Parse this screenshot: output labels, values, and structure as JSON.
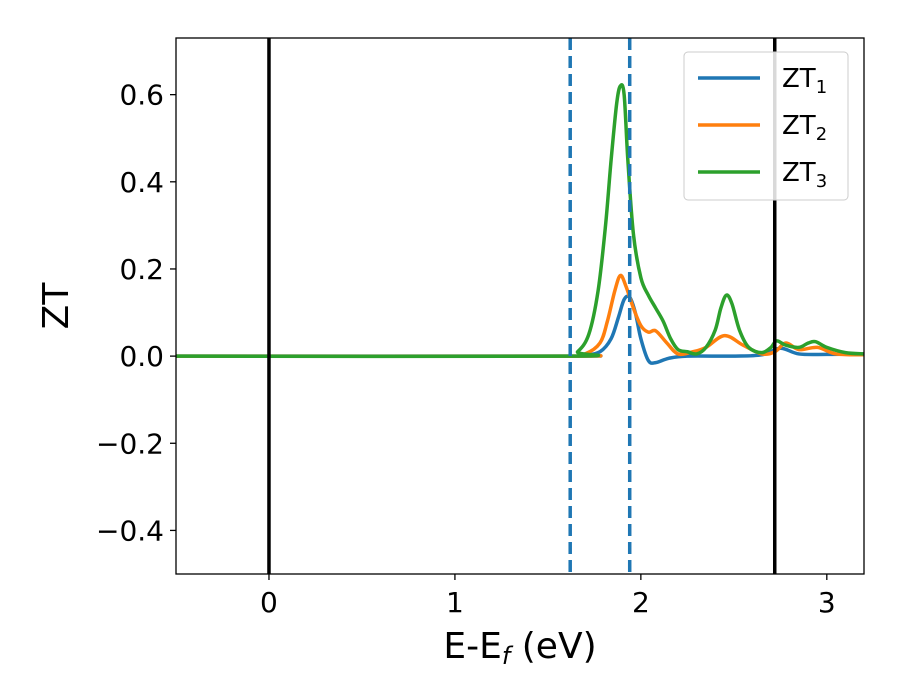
{
  "chart_data": {
    "type": "line",
    "xlabel": {
      "base": "E-E",
      "sub": "f",
      "suffix": " (eV)"
    },
    "ylabel": "ZT",
    "xlim": [
      -0.5,
      3.2
    ],
    "ylim": [
      -0.5,
      0.73
    ],
    "x_ticks": [
      0,
      1,
      2,
      3
    ],
    "x_tick_labels": [
      "0",
      "1",
      "2",
      "3"
    ],
    "y_ticks": [
      -0.4,
      -0.2,
      0.0,
      0.2,
      0.4,
      0.6
    ],
    "y_tick_labels": [
      "−0.4",
      "−0.2",
      "0.0",
      "0.2",
      "0.4",
      "0.6"
    ],
    "grid": false,
    "legend_position": "top-right",
    "vertical_lines": [
      {
        "x": 0.0,
        "style": "solid",
        "color": "#000000"
      },
      {
        "x": 2.72,
        "style": "solid",
        "color": "#000000"
      },
      {
        "x": 1.62,
        "style": "dashed",
        "color": "#1f77b4"
      },
      {
        "x": 1.94,
        "style": "dashed",
        "color": "#1f77b4"
      }
    ],
    "series": [
      {
        "name": "ZT",
        "name_sub": "1",
        "color": "#1f77b4",
        "x": [
          -0.5,
          1.6,
          1.7,
          1.78,
          1.84,
          1.88,
          1.91,
          1.94,
          1.97,
          2.0,
          2.04,
          2.08,
          2.15,
          2.25,
          2.5,
          2.65,
          2.75,
          2.85,
          3.0,
          3.2
        ],
        "y": [
          0,
          0,
          0.002,
          0.01,
          0.04,
          0.09,
          0.13,
          0.135,
          0.1,
          0.04,
          -0.01,
          -0.015,
          -0.005,
          0.0,
          0.0,
          0.003,
          0.018,
          0.005,
          0.004,
          0.005
        ]
      },
      {
        "name": "ZT",
        "name_sub": "2",
        "color": "#ff7f0e",
        "x": [
          -0.5,
          1.6,
          1.7,
          1.78,
          1.82,
          1.86,
          1.89,
          1.92,
          1.96,
          2.0,
          2.04,
          2.08,
          2.14,
          2.2,
          2.28,
          2.35,
          2.45,
          2.55,
          2.65,
          2.72,
          2.78,
          2.85,
          2.95,
          3.05,
          3.2
        ],
        "y": [
          0,
          0,
          0.005,
          0.03,
          0.08,
          0.15,
          0.185,
          0.16,
          0.11,
          0.07,
          0.055,
          0.058,
          0.03,
          0.005,
          0.01,
          0.02,
          0.047,
          0.025,
          0.005,
          0.01,
          0.03,
          0.015,
          0.02,
          0.005,
          0.003
        ]
      },
      {
        "name": "ZT",
        "name_sub": "3",
        "color": "#2ca02c",
        "x": [
          -0.5,
          1.6,
          1.66,
          1.72,
          1.77,
          1.81,
          1.84,
          1.87,
          1.89,
          1.91,
          1.93,
          1.96,
          2.0,
          2.04,
          2.08,
          2.12,
          2.16,
          2.2,
          2.25,
          2.3,
          2.35,
          2.4,
          2.43,
          2.46,
          2.49,
          2.53,
          2.58,
          2.65,
          2.7,
          2.73,
          2.78,
          2.85,
          2.9,
          2.94,
          3.0,
          3.1,
          3.2
        ],
        "y": [
          0,
          0,
          0.01,
          0.05,
          0.15,
          0.3,
          0.45,
          0.58,
          0.62,
          0.6,
          0.45,
          0.28,
          0.18,
          0.14,
          0.11,
          0.08,
          0.04,
          0.015,
          0.01,
          0.005,
          0.02,
          0.06,
          0.11,
          0.14,
          0.12,
          0.06,
          0.02,
          0.008,
          0.02,
          0.035,
          0.025,
          0.02,
          0.03,
          0.033,
          0.02,
          0.008,
          0.005
        ]
      }
    ]
  }
}
